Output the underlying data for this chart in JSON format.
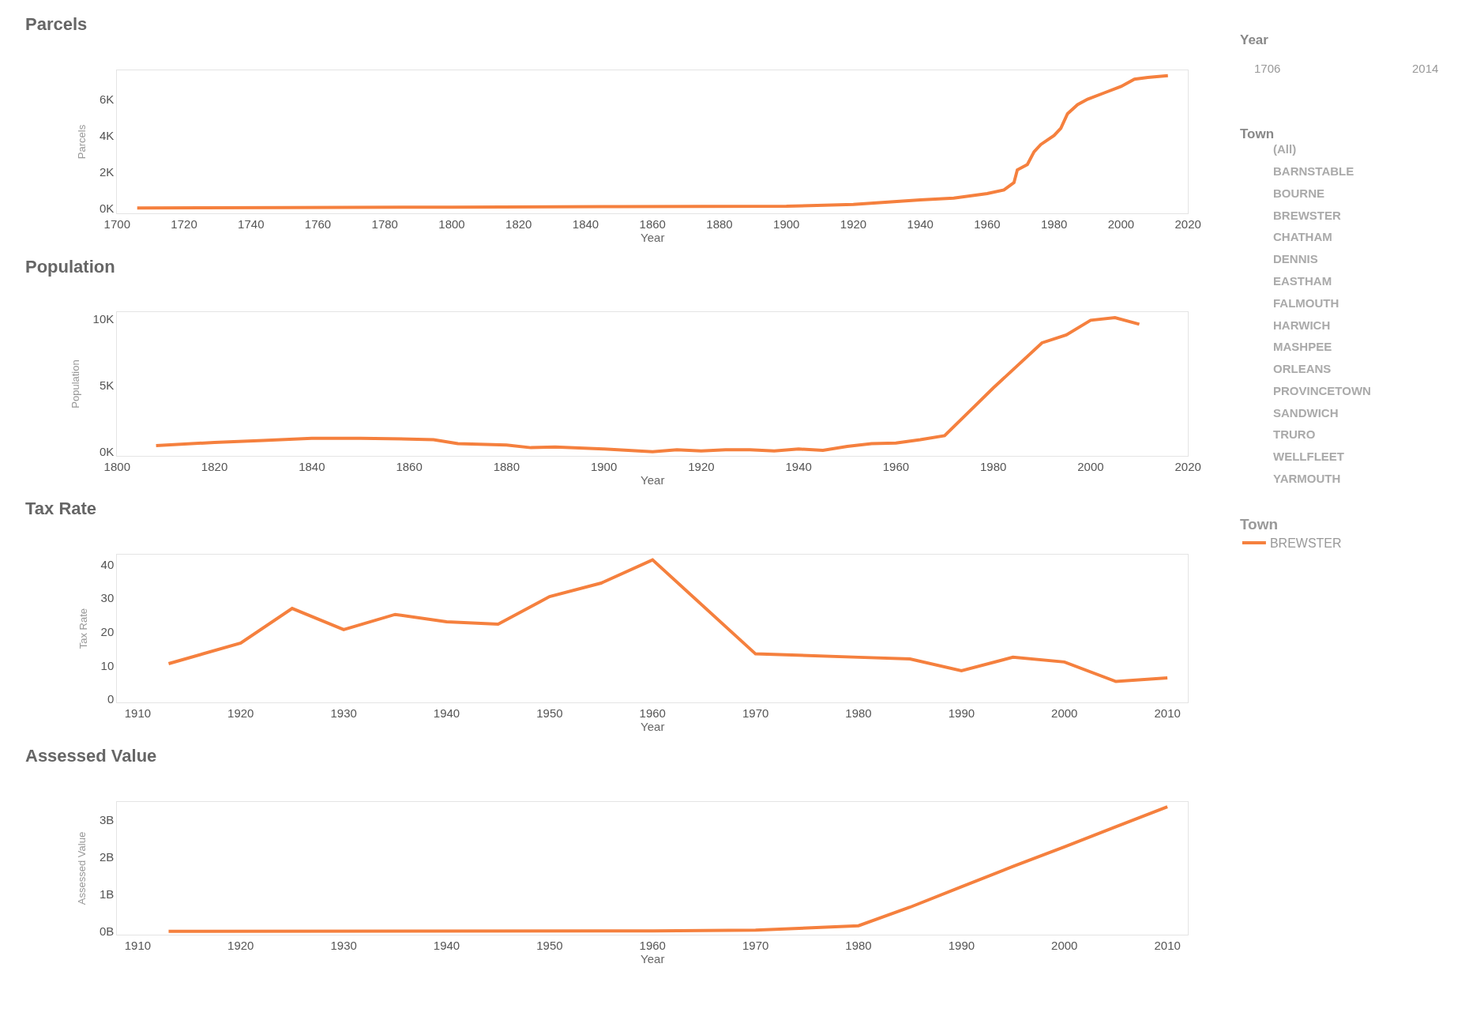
{
  "chart_data": [
    {
      "type": "line",
      "title": "Parcels",
      "xlabel": "Year",
      "ylabel": "Parcels",
      "legend": "right",
      "legend_title": "Town",
      "x": [
        1706,
        1750,
        1800,
        1850,
        1900,
        1920,
        1940,
        1950,
        1960,
        1965,
        1968,
        1969,
        1972,
        1974,
        1976,
        1980,
        1982,
        1984,
        1987,
        1990,
        1995,
        2000,
        2004,
        2008,
        2014
      ],
      "series": [
        {
          "name": "BREWSTER",
          "color": "#f5803e",
          "values": [
            0,
            20,
            50,
            80,
            100,
            200,
            450,
            550,
            800,
            1000,
            1400,
            2100,
            2400,
            3100,
            3500,
            4000,
            4400,
            5200,
            5700,
            6000,
            6350,
            6700,
            7100,
            7200,
            7300
          ]
        }
      ],
      "xlim": [
        1700,
        2020
      ],
      "xticks": [
        1700,
        1720,
        1740,
        1760,
        1780,
        1800,
        1820,
        1840,
        1860,
        1880,
        1900,
        1920,
        1940,
        1960,
        1980,
        2000,
        2020
      ],
      "ylim": [
        -300,
        7600
      ],
      "yticks": [
        {
          "value": 0,
          "label": "0K"
        },
        {
          "value": 2000,
          "label": "2K"
        },
        {
          "value": 4000,
          "label": "4K"
        },
        {
          "value": 6000,
          "label": "6K"
        }
      ]
    },
    {
      "type": "line",
      "title": "Population",
      "xlabel": "Year",
      "ylabel": "Population",
      "x": [
        1808,
        1820,
        1830,
        1840,
        1850,
        1860,
        1865,
        1870,
        1880,
        1885,
        1890,
        1900,
        1910,
        1915,
        1920,
        1925,
        1930,
        1935,
        1940,
        1945,
        1950,
        1955,
        1960,
        1965,
        1970,
        1980,
        1990,
        1995,
        2000,
        2005,
        2010
      ],
      "series": [
        {
          "color": "#f5803e",
          "values": [
            450,
            700,
            850,
            1000,
            1000,
            950,
            900,
            600,
            500,
            300,
            350,
            200,
            0,
            150,
            50,
            150,
            150,
            50,
            200,
            100,
            400,
            600,
            650,
            900,
            1200,
            4800,
            8200,
            8800,
            9900,
            10100,
            9600
          ]
        }
      ],
      "xlim": [
        1800,
        2020
      ],
      "xticks": [
        1800,
        1820,
        1840,
        1860,
        1880,
        1900,
        1920,
        1940,
        1960,
        1980,
        2000,
        2020
      ],
      "ylim": [
        -300,
        10500
      ],
      "yticks": [
        {
          "value": 0,
          "label": "0K"
        },
        {
          "value": 5000,
          "label": "5K"
        },
        {
          "value": 10000,
          "label": "10K"
        }
      ]
    },
    {
      "type": "line",
      "title": "Tax Rate",
      "xlabel": "Year",
      "ylabel": "Tax Rate",
      "x": [
        1913,
        1920,
        1925,
        1930,
        1935,
        1940,
        1945,
        1950,
        1955,
        1960,
        1970,
        1980,
        1985,
        1990,
        1995,
        2000,
        2005,
        2010
      ],
      "series": [
        {
          "color": "#f5803e",
          "values": [
            10.6,
            16.7,
            27,
            20.7,
            25.2,
            23,
            22.3,
            30.5,
            34.5,
            41.4,
            13.5,
            12.5,
            12,
            8.5,
            12.5,
            11.1,
            5.3,
            6.4
          ]
        }
      ],
      "xlim": [
        1908,
        2012
      ],
      "xticks": [
        1910,
        1920,
        1930,
        1940,
        1950,
        1960,
        1970,
        1980,
        1990,
        2000,
        2010
      ],
      "ylim": [
        -1,
        43
      ],
      "yticks": [
        0,
        10,
        20,
        30,
        40
      ]
    },
    {
      "type": "line",
      "title": "Assessed Value",
      "xlabel": "Year",
      "ylabel": "Assessed Value",
      "x": [
        1913,
        1960,
        1970,
        1980,
        1985,
        1990,
        1995,
        2000,
        2005,
        2010
      ],
      "series": [
        {
          "color": "#f5803e",
          "values": [
            0,
            10000000,
            30000000,
            150000000,
            650000000,
            1200000000,
            1750000000,
            2280000000,
            2820000000,
            3360000000
          ]
        }
      ],
      "xlim": [
        1908,
        2012
      ],
      "xticks": [
        1910,
        1920,
        1930,
        1940,
        1950,
        1960,
        1970,
        1980,
        1990,
        2000,
        2010
      ],
      "ylim": [
        -100000000,
        3500000000
      ],
      "yticks": [
        {
          "value": 0,
          "label": "0B"
        },
        {
          "value": 1000000000,
          "label": "1B"
        },
        {
          "value": 2000000000,
          "label": "2B"
        },
        {
          "value": 3000000000,
          "label": "3B"
        }
      ]
    },
    {
      "type": "other",
      "title": "Year",
      "annotations": [
        "1706",
        "2014"
      ]
    },
    {
      "type": "other",
      "title": "Town",
      "annotations": [
        "(All)",
        "BARNSTABLE",
        "BOURNE",
        "BREWSTER",
        "CHATHAM",
        "DENNIS",
        "EASTHAM",
        "FALMOUTH",
        "HARWICH",
        "MASHPEE",
        "ORLEANS",
        "PROVINCETOWN",
        "SANDWICH",
        "TRURO",
        "WELLFLEET",
        "YARMOUTH"
      ]
    }
  ]
}
